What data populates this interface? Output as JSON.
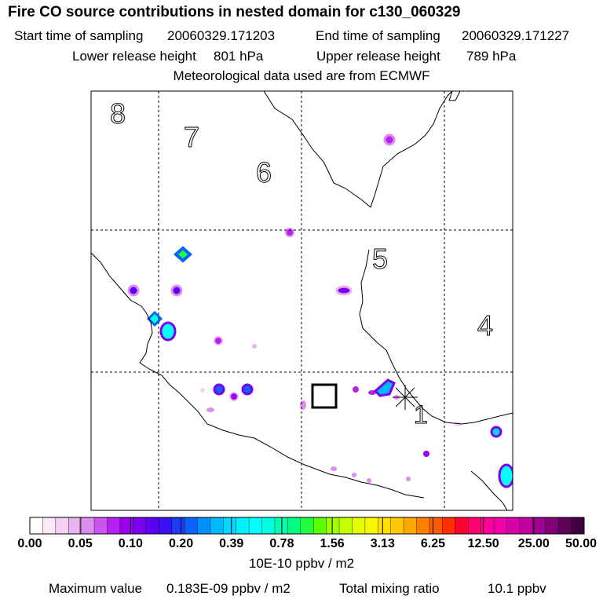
{
  "header": {
    "title": "Fire CO source contributions in nested domain for c130_060329",
    "start_label": "Start time of sampling",
    "start_value": "20060329.171203",
    "end_label": "End time of sampling",
    "end_value": "20060329.171227",
    "lower_label": "Lower release height",
    "lower_value": "801 hPa",
    "upper_label": "Upper release height",
    "upper_value": "789 hPa",
    "met_text": "Meteorological data used are from ECMWF"
  },
  "map": {
    "region_labels": [
      "8",
      "7",
      "6",
      "5",
      "4",
      "1"
    ]
  },
  "colorbar": {
    "tick_labels": [
      "0.00",
      "0.05",
      "0.10",
      "0.20",
      "0.39",
      "0.78",
      "1.56",
      "3.13",
      "6.25",
      "12.50",
      "25.00",
      "50.00"
    ],
    "colors": [
      "#ffffff",
      "#fbe9fb",
      "#f4cff6",
      "#ecb3f2",
      "#dd8cf0",
      "#cc55f0",
      "#b522f0",
      "#9a00ee",
      "#7a00f0",
      "#5c00f2",
      "#3a10f4",
      "#1c3cf8",
      "#0a64fa",
      "#0090fc",
      "#00b8fe",
      "#00d8ff",
      "#00f0ff",
      "#00ffff",
      "#00ffe0",
      "#00ffb0",
      "#00ff80",
      "#20ff40",
      "#60ff00",
      "#a0ff00",
      "#c8ff00",
      "#e4ff00",
      "#f8f800",
      "#ffe000",
      "#ffc800",
      "#ffa800",
      "#ff8000",
      "#ff5a00",
      "#ff3000",
      "#ff0030",
      "#ff0070",
      "#ff0098",
      "#f000a8",
      "#d800a8",
      "#c000a0",
      "#a00090",
      "#800078",
      "#600058",
      "#400040"
    ],
    "units": "10E-10 ppbv / m2"
  },
  "footer": {
    "max_label": "Maximum value",
    "max_value": "0.183E-09 ppbv / m2",
    "total_label": "Total mixing ratio",
    "total_value": "10.1 ppbv"
  }
}
